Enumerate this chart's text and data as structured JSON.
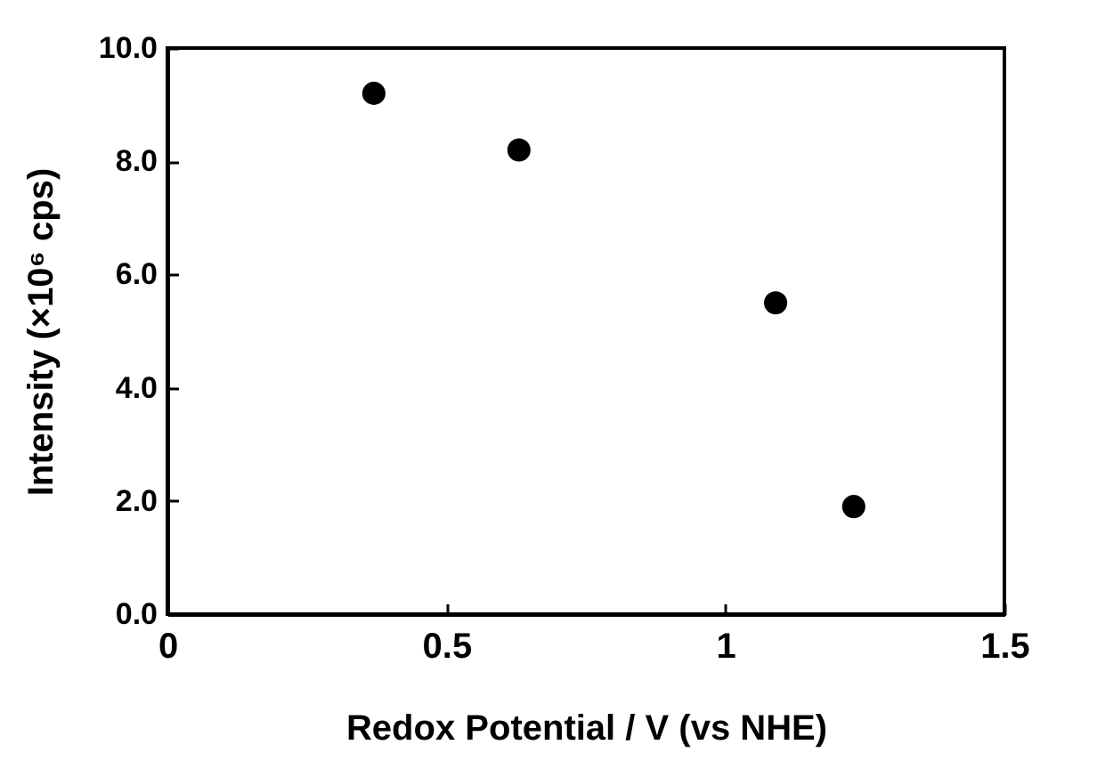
{
  "chart_data": {
    "type": "scatter",
    "xlabel": "Redox Potential / V    (vs NHE)",
    "ylabel": "Intensity    (×10⁶ cps)",
    "x": [
      0.37,
      0.63,
      1.09,
      1.23
    ],
    "series": [
      {
        "color": "#000000",
        "values": [
          9.2,
          8.2,
          5.5,
          1.9
        ]
      }
    ],
    "xlim": [
      0,
      1.5
    ],
    "xticks": [
      0,
      0.5,
      1,
      1.5
    ],
    "ylim": [
      0,
      10
    ],
    "yticks": [
      {
        "value": 0,
        "label": "0.0"
      },
      {
        "value": 2,
        "label": "2.0"
      },
      {
        "value": 4,
        "label": "4.0"
      },
      {
        "value": 6,
        "label": "6.0"
      },
      {
        "value": 8,
        "label": "8.0"
      },
      {
        "value": 10,
        "label": "10.0"
      }
    ],
    "marker": "circle",
    "grid": false,
    "legend": false
  }
}
